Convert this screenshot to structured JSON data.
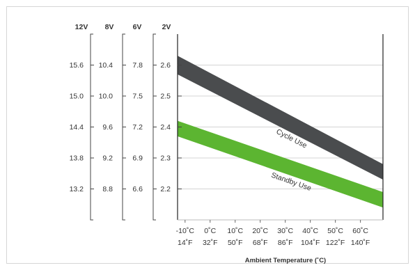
{
  "chart_data": {
    "type": "area",
    "columns": [
      {
        "header": "12V",
        "ticks": [
          "15.6",
          "15.0",
          "14.4",
          "13.8",
          "13.2"
        ]
      },
      {
        "header": "8V",
        "ticks": [
          "10.4",
          "10.0",
          "9.6",
          "9.2",
          "8.8"
        ]
      },
      {
        "header": "6V",
        "ticks": [
          "7.8",
          "7.5",
          "7.2",
          "6.9",
          "6.6"
        ]
      },
      {
        "header": "2V",
        "ticks": [
          "2.6",
          "2.5",
          "2.4",
          "2.3",
          "2.2"
        ]
      }
    ],
    "y_ticks_2v": [
      2.6,
      2.5,
      2.4,
      2.3,
      2.2
    ],
    "ylim": [
      2.1,
      2.7
    ],
    "x_ticks_c": [
      -10,
      0,
      10,
      20,
      30,
      40,
      50,
      60
    ],
    "x_tick_labels_c": [
      "-10˚C",
      "0˚C",
      "10˚C",
      "20˚C",
      "30˚C",
      "40˚C",
      "50˚C",
      "60˚C"
    ],
    "x_tick_labels_f": [
      "14˚F",
      "32˚F",
      "50˚F",
      "68˚F",
      "86˚F",
      "104˚F",
      "122˚F",
      "140˚F"
    ],
    "xlim": [
      -13,
      69
    ],
    "xlabel": "Ambient Temperature (˚C)",
    "grid": true,
    "series": [
      {
        "name": "Cycle Use",
        "color": "#4a4c4e",
        "x": [
          -13,
          69
        ],
        "upper": [
          2.63,
          2.28
        ],
        "lower": [
          2.57,
          2.23
        ]
      },
      {
        "name": "Standby Use",
        "color": "#5cb531",
        "x": [
          -13,
          69
        ],
        "upper": [
          2.42,
          2.19
        ],
        "lower": [
          2.37,
          2.14
        ]
      }
    ]
  }
}
